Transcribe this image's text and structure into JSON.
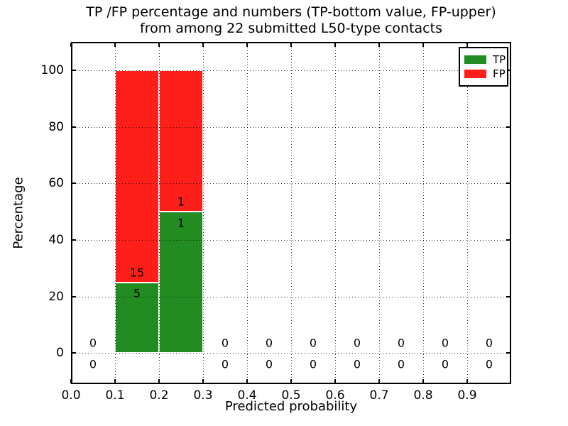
{
  "chart_data": {
    "type": "bar",
    "stacked": true,
    "title_lines": [
      "TP /FP percentage and numbers (TP-bottom value, FP-upper)",
      "from among 22 submitted L50-type contacts"
    ],
    "xlabel": "Predicted probability",
    "ylabel": "Percentage",
    "total_contacts": 22,
    "xlim": [
      0.0,
      1.0
    ],
    "ylim": [
      -11,
      110
    ],
    "grid": true,
    "x_tick_values": [
      0.0,
      0.1,
      0.2,
      0.3,
      0.4,
      0.5,
      0.6,
      0.7,
      0.8,
      0.9
    ],
    "x_tick_labels": [
      "0.0",
      "0.1",
      "0.2",
      "0.3",
      "0.4",
      "0.5",
      "0.6",
      "0.7",
      "0.8",
      "0.9"
    ],
    "y_tick_values": [
      0,
      20,
      40,
      60,
      80,
      100
    ],
    "y_tick_labels": [
      "0",
      "20",
      "40",
      "60",
      "80",
      "100"
    ],
    "bin_edges": [
      0.0,
      0.1,
      0.2,
      0.3,
      0.4,
      0.5,
      0.6,
      0.7,
      0.8,
      0.9,
      1.0
    ],
    "series": [
      {
        "name": "TP",
        "color": "#228b22",
        "percentages": [
          0,
          25,
          50,
          0,
          0,
          0,
          0,
          0,
          0,
          0
        ],
        "counts": [
          0,
          5,
          1,
          0,
          0,
          0,
          0,
          0,
          0,
          0
        ]
      },
      {
        "name": "FP",
        "color": "#ff1f1a",
        "percentages": [
          0,
          75,
          50,
          0,
          0,
          0,
          0,
          0,
          0,
          0
        ],
        "counts": [
          0,
          15,
          1,
          0,
          0,
          0,
          0,
          0,
          0,
          0
        ]
      }
    ],
    "legend": {
      "position": "upper right",
      "entries": [
        {
          "label": "TP",
          "color": "#228b22"
        },
        {
          "label": "FP",
          "color": "#ff1f1a"
        }
      ]
    }
  }
}
